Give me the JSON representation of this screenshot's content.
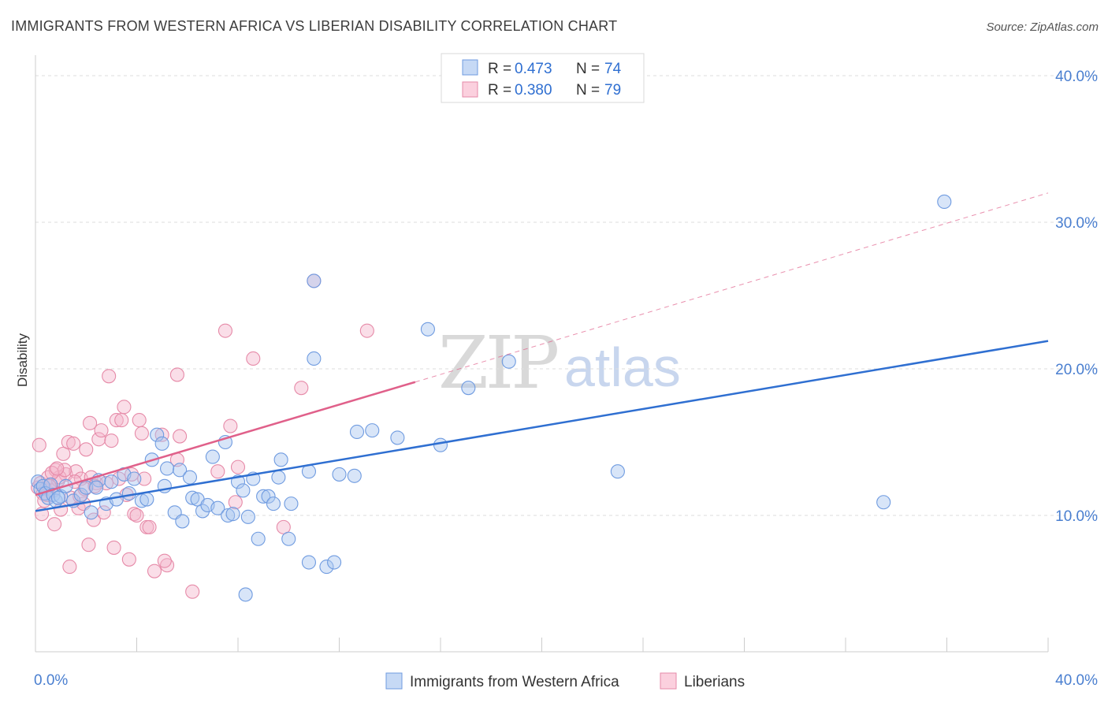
{
  "header": {
    "title": "IMMIGRANTS FROM WESTERN AFRICA VS LIBERIAN DISABILITY CORRELATION CHART",
    "source": "Source: ZipAtlas.com"
  },
  "watermark": {
    "zip": "ZIP",
    "atlas": "atlas"
  },
  "legend": {
    "rows": [
      {
        "r_label": "R =",
        "r_value": "0.473",
        "n_label": "N =",
        "n_value": "74",
        "color": "#a9c6f0"
      },
      {
        "r_label": "R =",
        "r_value": "0.380",
        "n_label": "N =",
        "n_value": "79",
        "color": "#f5b6cb"
      }
    ]
  },
  "bottom_legend": {
    "items": [
      {
        "label": "Immigrants from Western Africa",
        "color": "#a9c6f0"
      },
      {
        "label": "Liberians",
        "color": "#f5b6cb"
      }
    ]
  },
  "colors": {
    "blue_fill": "#a9c6f0",
    "blue_stroke": "#6f9be0",
    "blue_line": "#2f6fd1",
    "pink_fill": "#f5b6cb",
    "pink_stroke": "#e68aa8",
    "pink_line": "#e0608a",
    "grid": "#dedede",
    "axis_text": "#4a7fd0"
  },
  "chart_data": {
    "type": "scatter",
    "title": "IMMIGRANTS FROM WESTERN AFRICA VS LIBERIAN DISABILITY CORRELATION CHART",
    "xlabel": "",
    "ylabel": "Disability",
    "xlim": [
      0,
      40
    ],
    "ylim": [
      0,
      41.5
    ],
    "x_tick_labels": [
      "0.0%",
      "40.0%"
    ],
    "y_ticks": [
      10,
      20,
      30,
      40
    ],
    "y_tick_labels": [
      "10.0%",
      "20.0%",
      "30.0%",
      "40.0%"
    ],
    "grid": "horizontal dashed",
    "legend_position": "top-center",
    "series": [
      {
        "name": "Immigrants from Western Africa",
        "r": 0.473,
        "n": 74,
        "trend": {
          "x": [
            0,
            40
          ],
          "y": [
            10.3,
            21.9
          ],
          "style": "solid"
        },
        "points": [
          [
            0.1,
            12.3
          ],
          [
            0.2,
            11.8
          ],
          [
            0.3,
            12.0
          ],
          [
            0.4,
            11.5
          ],
          [
            0.5,
            11.2
          ],
          [
            0.6,
            12.1
          ],
          [
            0.7,
            11.4
          ],
          [
            0.8,
            11.0
          ],
          [
            1.0,
            11.3
          ],
          [
            1.2,
            12.0
          ],
          [
            1.5,
            11.0
          ],
          [
            1.8,
            11.4
          ],
          [
            2.0,
            11.9
          ],
          [
            2.2,
            10.2
          ],
          [
            2.5,
            12.4
          ],
          [
            2.8,
            10.8
          ],
          [
            3.0,
            12.3
          ],
          [
            3.2,
            11.1
          ],
          [
            3.5,
            12.8
          ],
          [
            3.7,
            11.5
          ],
          [
            3.9,
            12.5
          ],
          [
            4.2,
            11.0
          ],
          [
            4.4,
            11.1
          ],
          [
            4.6,
            13.8
          ],
          [
            4.8,
            15.5
          ],
          [
            5.0,
            14.9
          ],
          [
            5.1,
            12.0
          ],
          [
            5.2,
            13.2
          ],
          [
            5.5,
            10.2
          ],
          [
            5.7,
            13.1
          ],
          [
            5.8,
            9.6
          ],
          [
            6.1,
            12.6
          ],
          [
            6.2,
            11.2
          ],
          [
            6.4,
            11.1
          ],
          [
            6.6,
            10.3
          ],
          [
            6.8,
            10.7
          ],
          [
            7.0,
            14.0
          ],
          [
            7.2,
            10.5
          ],
          [
            7.5,
            15.0
          ],
          [
            7.6,
            10.0
          ],
          [
            7.8,
            10.1
          ],
          [
            8.0,
            12.3
          ],
          [
            8.2,
            11.7
          ],
          [
            8.4,
            9.9
          ],
          [
            8.6,
            12.5
          ],
          [
            8.8,
            8.4
          ],
          [
            9.0,
            11.3
          ],
          [
            9.2,
            11.3
          ],
          [
            9.4,
            10.8
          ],
          [
            9.6,
            12.6
          ],
          [
            9.7,
            13.8
          ],
          [
            10.0,
            8.4
          ],
          [
            10.1,
            10.8
          ],
          [
            11.0,
            26.0
          ],
          [
            10.8,
            13.0
          ],
          [
            10.8,
            6.8
          ],
          [
            11.0,
            20.7
          ],
          [
            11.5,
            6.5
          ],
          [
            11.8,
            6.8
          ],
          [
            12.0,
            12.8
          ],
          [
            12.6,
            12.7
          ],
          [
            12.7,
            15.7
          ],
          [
            13.3,
            15.8
          ],
          [
            14.3,
            15.3
          ],
          [
            15.5,
            22.7
          ],
          [
            16.0,
            14.8
          ],
          [
            17.1,
            18.7
          ],
          [
            18.7,
            20.5
          ],
          [
            23.0,
            13.0
          ],
          [
            33.5,
            10.9
          ],
          [
            35.9,
            31.4
          ],
          [
            8.3,
            4.6
          ],
          [
            0.9,
            11.2
          ],
          [
            2.4,
            11.9
          ]
        ]
      },
      {
        "name": "Liberians",
        "r": 0.38,
        "n": 79,
        "trend": {
          "x": [
            0,
            15
          ],
          "y": [
            11.4,
            19.1
          ],
          "style": "solid",
          "extension": {
            "x": [
              15,
              40
            ],
            "y": [
              19.1,
              32.0
            ],
            "style": "dashed"
          }
        },
        "points": [
          [
            0.1,
            11.9
          ],
          [
            0.2,
            12.2
          ],
          [
            0.3,
            11.5
          ],
          [
            0.4,
            11.8
          ],
          [
            0.5,
            12.6
          ],
          [
            0.6,
            12.1
          ],
          [
            0.7,
            11.7
          ],
          [
            0.8,
            13.1
          ],
          [
            0.9,
            12.4
          ],
          [
            1.0,
            10.4
          ],
          [
            1.1,
            14.2
          ],
          [
            1.2,
            12.8
          ],
          [
            1.3,
            15.0
          ],
          [
            1.4,
            11.2
          ],
          [
            1.5,
            14.9
          ],
          [
            1.6,
            13.0
          ],
          [
            1.7,
            10.5
          ],
          [
            1.8,
            12.5
          ],
          [
            1.9,
            10.8
          ],
          [
            2.0,
            14.5
          ],
          [
            2.1,
            8.0
          ],
          [
            2.2,
            12.6
          ],
          [
            2.3,
            9.7
          ],
          [
            2.4,
            12.2
          ],
          [
            2.5,
            15.2
          ],
          [
            2.6,
            15.8
          ],
          [
            2.7,
            10.2
          ],
          [
            2.8,
            12.2
          ],
          [
            2.9,
            19.5
          ],
          [
            3.0,
            15.1
          ],
          [
            3.1,
            7.8
          ],
          [
            3.2,
            16.5
          ],
          [
            3.3,
            12.5
          ],
          [
            3.4,
            16.5
          ],
          [
            3.5,
            17.4
          ],
          [
            3.6,
            11.4
          ],
          [
            3.7,
            7.0
          ],
          [
            3.8,
            12.8
          ],
          [
            3.9,
            10.1
          ],
          [
            4.0,
            10.0
          ],
          [
            4.1,
            16.5
          ],
          [
            4.2,
            15.6
          ],
          [
            4.3,
            12.5
          ],
          [
            4.4,
            9.2
          ],
          [
            4.5,
            9.2
          ],
          [
            4.7,
            6.2
          ],
          [
            5.0,
            15.5
          ],
          [
            5.2,
            6.6
          ],
          [
            5.1,
            6.9
          ],
          [
            5.6,
            19.6
          ],
          [
            5.6,
            13.8
          ],
          [
            5.7,
            15.4
          ],
          [
            6.2,
            4.8
          ],
          [
            7.2,
            13.0
          ],
          [
            7.5,
            22.6
          ],
          [
            7.7,
            16.1
          ],
          [
            7.9,
            10.9
          ],
          [
            8.0,
            13.3
          ],
          [
            8.6,
            20.7
          ],
          [
            9.8,
            9.2
          ],
          [
            10.5,
            18.7
          ],
          [
            11.0,
            26.0
          ],
          [
            13.1,
            22.6
          ],
          [
            0.15,
            14.8
          ],
          [
            0.35,
            11.0
          ],
          [
            0.55,
            12.0
          ],
          [
            0.75,
            9.4
          ],
          [
            0.95,
            12.6
          ],
          [
            1.15,
            13.1
          ],
          [
            1.35,
            6.5
          ],
          [
            1.55,
            12.3
          ],
          [
            1.75,
            11.3
          ],
          [
            1.95,
            11.8
          ],
          [
            2.15,
            16.3
          ],
          [
            2.35,
            12.0
          ],
          [
            0.25,
            10.1
          ],
          [
            0.45,
            11.4
          ],
          [
            0.65,
            12.9
          ],
          [
            0.85,
            13.2
          ]
        ]
      }
    ]
  }
}
